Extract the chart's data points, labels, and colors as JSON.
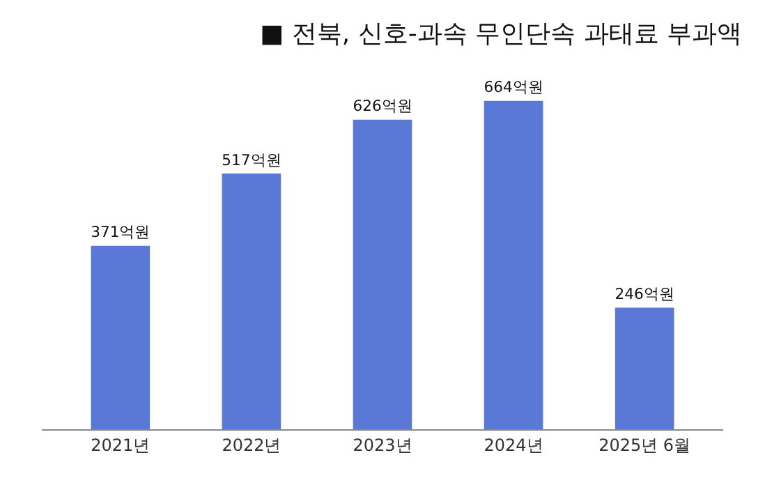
{
  "chart_data": {
    "type": "bar",
    "title": "■ 전북, 신호-과속 무인단속 과태료 부과액",
    "categories": [
      "2021년",
      "2022년",
      "2023년",
      "2024년",
      "2025년 6월"
    ],
    "values": [
      371,
      517,
      626,
      664,
      246
    ],
    "value_labels": [
      "371억원",
      "517억원",
      "626억원",
      "664억원",
      "246억원"
    ],
    "color": "#5a78d6"
  }
}
